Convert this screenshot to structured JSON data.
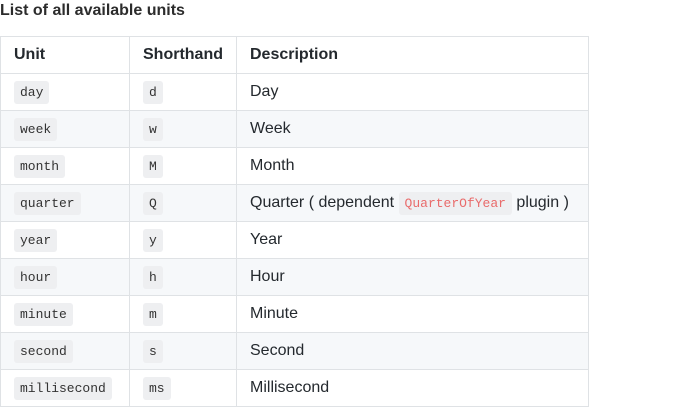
{
  "title": "List of all available units",
  "headers": [
    "Unit",
    "Shorthand",
    "Description"
  ],
  "rows": [
    {
      "unit": "day",
      "short": "d",
      "desc": "Day"
    },
    {
      "unit": "week",
      "short": "w",
      "desc": "Week"
    },
    {
      "unit": "month",
      "short": "M",
      "desc": "Month"
    },
    {
      "unit": "quarter",
      "short": "Q",
      "desc": "Quarter ( dependent ",
      "code": "QuarterOfYear",
      "desc_after": " plugin )"
    },
    {
      "unit": "year",
      "short": "y",
      "desc": "Year"
    },
    {
      "unit": "hour",
      "short": "h",
      "desc": "Hour"
    },
    {
      "unit": "minute",
      "short": "m",
      "desc": "Minute"
    },
    {
      "unit": "second",
      "short": "s",
      "desc": "Second"
    },
    {
      "unit": "millisecond",
      "short": "ms",
      "desc": "Millisecond"
    }
  ],
  "colors": {
    "code_highlight": "#e96b6b",
    "row_stripe": "#f6f8fa",
    "border": "#dfe2e5"
  }
}
